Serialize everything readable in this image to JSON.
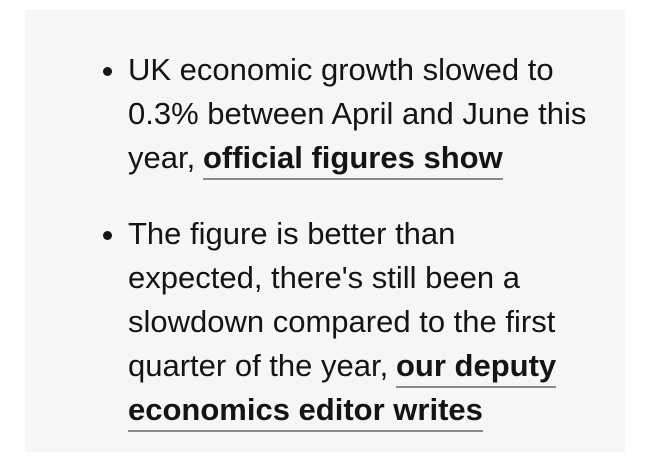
{
  "summary": {
    "items": [
      {
        "text": "UK economic growth slowed to 0.3% between April and June this year,",
        "link": "official figures show"
      },
      {
        "text": "The figure is better than expected, there's still been a slowdown compared to the first quarter of the year,",
        "link": "our deputy economics editor writes"
      }
    ]
  }
}
